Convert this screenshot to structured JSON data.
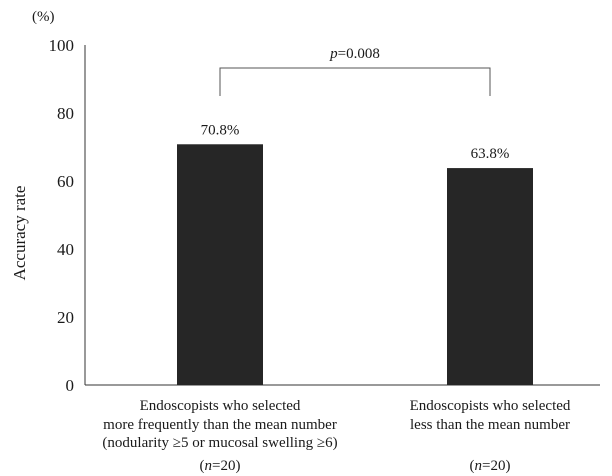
{
  "chart_data": {
    "type": "bar",
    "categories": [
      "Endoscopists who selected more frequently than the mean number (nodularity ≥5 or mucosal swelling ≥6)",
      "Endoscopists who selected less than the mean number"
    ],
    "category_lines": [
      [
        "Endoscopists who selected",
        "more frequently than the mean number",
        "(nodularity ≥5 or mucosal swelling ≥6)"
      ],
      [
        "Endoscopists who selected",
        "less than the mean number"
      ]
    ],
    "group_sizes": [
      "20",
      "20"
    ],
    "n_symbol": "n",
    "values": [
      70.8,
      63.8
    ],
    "data_labels": [
      "70.8%",
      "63.8%"
    ],
    "ylabel": "Accuracy rate",
    "yunit": "(%)",
    "ylim": [
      0,
      100
    ],
    "yticks": [
      0,
      20,
      40,
      60,
      80,
      100
    ],
    "grid": false,
    "bar_color": "#262626",
    "significance": {
      "symbol": "p",
      "value": "0.008",
      "between": [
        0,
        1
      ]
    }
  }
}
